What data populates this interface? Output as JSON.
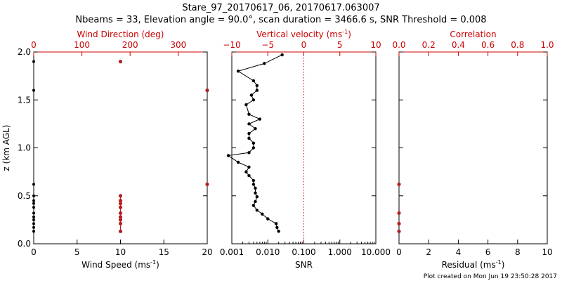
{
  "header": {
    "line1": "Stare_97_20170617_06, 20170617.063007",
    "line2": "Nbeams = 33, Elevation angle = 90.0°, scan duration = 3466.6 s, SNR Threshold = 0.008"
  },
  "footer": {
    "created": "Plot created on Mon Jun 19 23:50:28 2017"
  },
  "colors": {
    "axis": "#000000",
    "accent": "#cc0000",
    "wind_dir_marker": "#b22222"
  },
  "chart_data": [
    {
      "id": "wind",
      "type": "scatter",
      "ylabel": "z (km AGL)",
      "ylim": [
        0,
        2
      ],
      "yticks": [
        0.0,
        0.5,
        1.0,
        1.5,
        2.0
      ],
      "ytick_labels": [
        "0.0",
        "0.5",
        "1.0",
        "1.5",
        "2.0"
      ],
      "bottom_axis": {
        "label": "Wind Speed (ms",
        "label_sup": "-1",
        "label_end": ")",
        "lim": [
          0,
          20
        ],
        "ticks": [
          0,
          5,
          10,
          15,
          20
        ],
        "tick_labels": [
          "0",
          "5",
          "10",
          "15",
          "20"
        ]
      },
      "top_axis": {
        "label": "Wind Direction (deg)",
        "lim": [
          0,
          360
        ],
        "ticks": [
          0,
          100,
          200,
          300
        ],
        "tick_labels": [
          "0",
          "100",
          "200",
          "300"
        ]
      },
      "series": [
        {
          "name": "Wind Speed",
          "color": "#000000",
          "x": [
            0,
            0,
            0,
            0,
            0,
            0,
            0,
            0,
            0,
            0,
            0,
            0,
            0
          ],
          "y": [
            1.9,
            1.6,
            0.62,
            0.5,
            0.45,
            0.42,
            0.38,
            0.32,
            0.28,
            0.25,
            0.21,
            0.17,
            0.13
          ]
        },
        {
          "name": "Wind Direction",
          "color": "#b22222",
          "x": [
            180,
            360,
            360,
            180,
            180,
            180,
            180,
            180,
            180,
            180,
            180,
            180
          ],
          "y": [
            1.9,
            1.6,
            0.62,
            0.5,
            0.45,
            0.42,
            0.38,
            0.32,
            0.28,
            0.25,
            0.21,
            0.13
          ]
        }
      ]
    },
    {
      "id": "snr",
      "type": "line",
      "ylim": [
        0,
        2
      ],
      "bottom_axis": {
        "label": "SNR",
        "scale": "log",
        "lim": [
          0.001,
          10
        ],
        "ticks": [
          0.001,
          0.01,
          0.1,
          1,
          10
        ],
        "tick_labels": [
          "0.001",
          "0.010",
          "0.100",
          "1.000",
          "10.000"
        ]
      },
      "top_axis": {
        "label": "Vertical velocity (ms",
        "label_sup": "-1",
        "label_end": ")",
        "lim": [
          -10,
          10
        ],
        "ticks": [
          -10,
          -5,
          0,
          5,
          10
        ],
        "tick_labels": [
          "−10",
          "−5",
          "0",
          "5",
          "10"
        ]
      },
      "threshold_line": {
        "axis": "top",
        "value": 0,
        "color": "#cc0000",
        "style": "dotted"
      },
      "series": [
        {
          "name": "SNR profile",
          "color": "#000000",
          "points": [
            [
              0.02,
              0.13
            ],
            [
              0.018,
              0.17
            ],
            [
              0.017,
              0.21
            ],
            [
              0.01,
              0.26
            ],
            [
              0.007,
              0.31
            ],
            [
              0.005,
              0.35
            ],
            [
              0.004,
              0.4
            ],
            [
              0.0045,
              0.44
            ],
            [
              0.005,
              0.49
            ],
            [
              0.0045,
              0.53
            ],
            [
              0.0045,
              0.58
            ],
            [
              0.004,
              0.62
            ],
            [
              0.004,
              0.66
            ],
            [
              0.003,
              0.71
            ],
            [
              0.0025,
              0.75
            ],
            [
              0.003,
              0.8
            ],
            [
              0.0015,
              0.85
            ],
            [
              0.0008,
              0.92
            ],
            [
              0.003,
              0.95
            ],
            [
              0.004,
              1.0
            ],
            [
              0.004,
              1.05
            ],
            [
              0.003,
              1.1
            ],
            [
              0.003,
              1.15
            ],
            [
              0.0045,
              1.2
            ],
            [
              0.003,
              1.25
            ],
            [
              0.006,
              1.3
            ],
            [
              0.003,
              1.35
            ],
            [
              0.0025,
              1.45
            ],
            [
              0.004,
              1.5
            ],
            [
              0.0035,
              1.55
            ],
            [
              0.005,
              1.6
            ],
            [
              0.005,
              1.65
            ],
            [
              0.004,
              1.7
            ],
            [
              0.0015,
              1.8
            ],
            [
              0.008,
              1.88
            ],
            [
              0.025,
              1.97
            ]
          ]
        }
      ]
    },
    {
      "id": "corr",
      "type": "scatter",
      "ylim": [
        0,
        2
      ],
      "bottom_axis": {
        "label": "Residual (ms",
        "label_sup": "-1",
        "label_end": ")",
        "lim": [
          0,
          10
        ],
        "ticks": [
          0,
          2,
          4,
          6,
          8,
          10
        ],
        "tick_labels": [
          "0",
          "2",
          "4",
          "6",
          "8",
          "10"
        ]
      },
      "top_axis": {
        "label": "Correlation",
        "lim": [
          0,
          1
        ],
        "ticks": [
          0,
          0.2,
          0.4,
          0.6,
          0.8,
          1.0
        ],
        "tick_labels": [
          "0.0",
          "0.2",
          "0.4",
          "0.6",
          "0.8",
          "1.0"
        ]
      },
      "series": [
        {
          "name": "Residual",
          "color": "#000000",
          "x": [
            0,
            0,
            0
          ],
          "y": [
            0.62,
            0.32,
            0.13
          ]
        },
        {
          "name": "Correlation",
          "color": "#b22222",
          "x": [
            0,
            0,
            0,
            0
          ],
          "y": [
            0.62,
            0.32,
            0.21,
            0.13
          ]
        }
      ]
    }
  ]
}
